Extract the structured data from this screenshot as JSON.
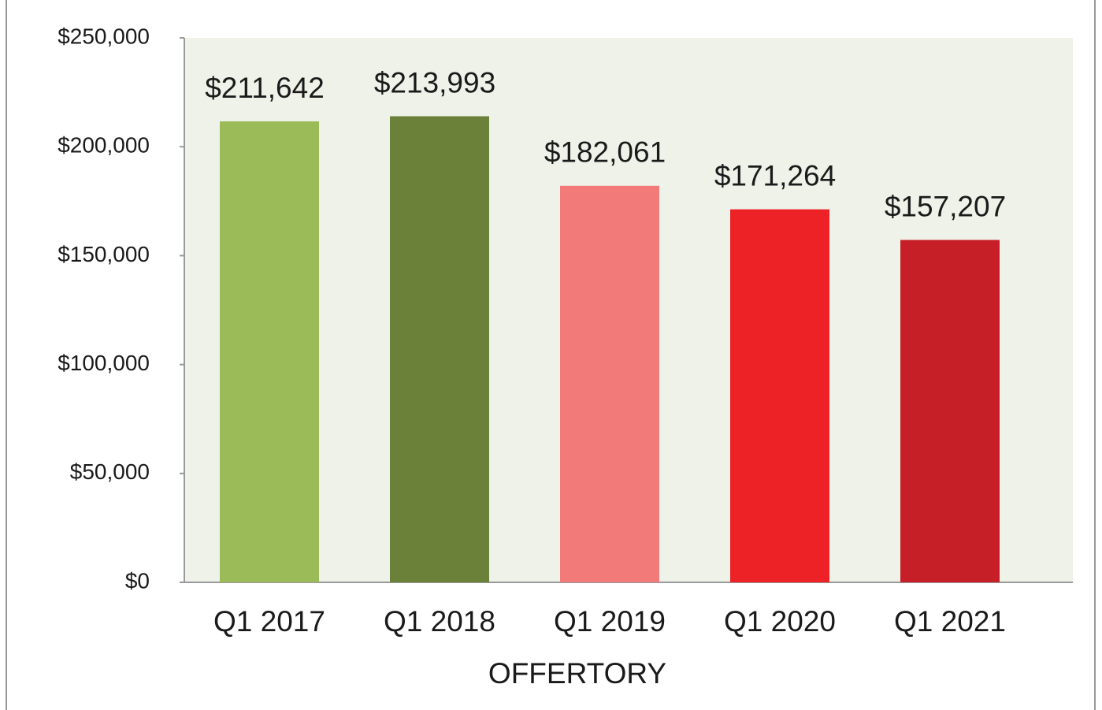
{
  "chart_data": {
    "type": "bar",
    "x_label": "OFFERTORY",
    "categories": [
      "Q1 2017",
      "Q1 2018",
      "Q1 2019",
      "Q1 2020",
      "Q1 2021"
    ],
    "values": [
      211642,
      213993,
      182061,
      171264,
      157207
    ],
    "value_labels": [
      "$211,642",
      "$213,993",
      "$182,061",
      "$171,264",
      "$157,207"
    ],
    "colors": [
      "#9bbb59",
      "#6b8139",
      "#f27b79",
      "#ed2227",
      "#c71f28"
    ],
    "ylim": [
      0,
      250000
    ],
    "yticks": [
      {
        "value": 0,
        "label": "$0"
      },
      {
        "value": 50000,
        "label": "$50,000"
      },
      {
        "value": 100000,
        "label": "$100,000"
      },
      {
        "value": 150000,
        "label": "$150,000"
      },
      {
        "value": 200000,
        "label": "$200,000"
      },
      {
        "value": 250000,
        "label": "$250,000"
      }
    ],
    "grid": false
  }
}
